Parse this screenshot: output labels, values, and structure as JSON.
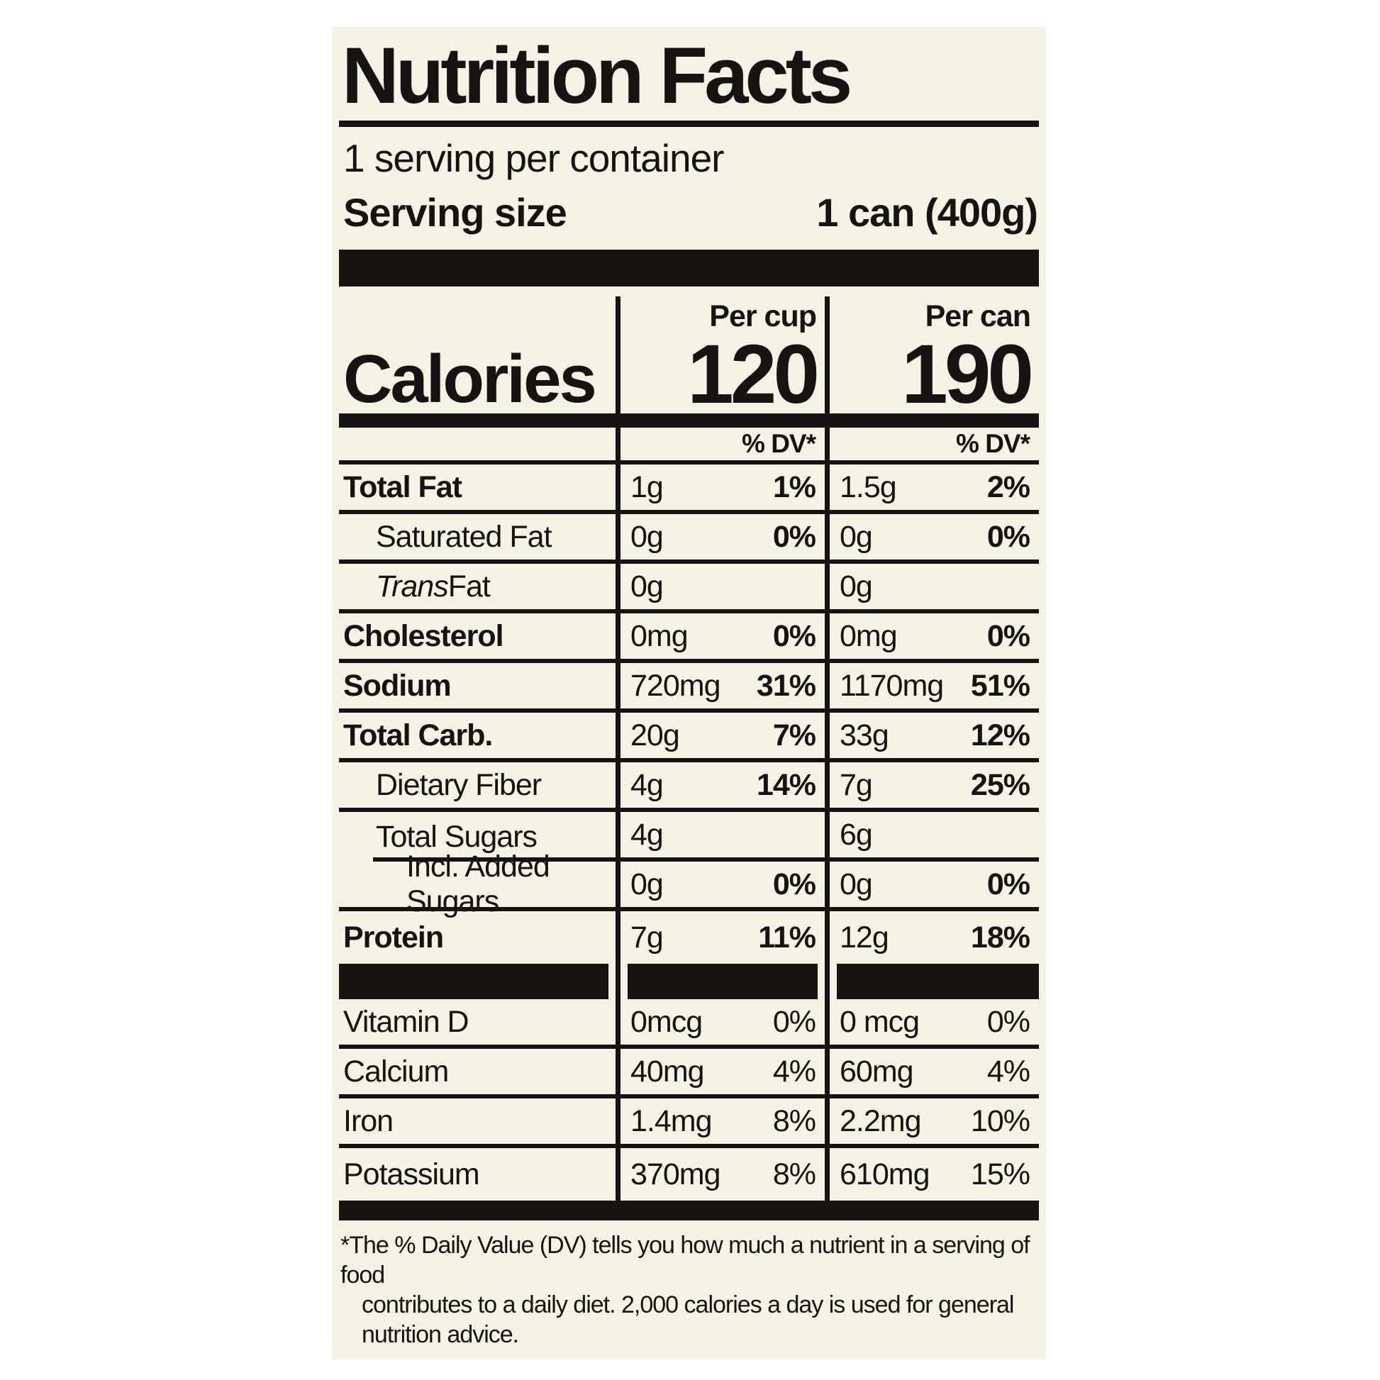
{
  "colors": {
    "bg": "#ffffff",
    "label_bg": "#f5f3e5",
    "ink": "#161413"
  },
  "nutrition": {
    "title": "Nutrition Facts",
    "servings_per_container": "1 serving per container",
    "serving_size_label": "Serving size",
    "serving_size_value": "1 can (400g)",
    "calories_label": "Calories",
    "columns": [
      {
        "header": "Per cup",
        "calories": "120",
        "dv_header": "% DV*"
      },
      {
        "header": "Per can",
        "calories": "190",
        "dv_header": "% DV*"
      }
    ],
    "rows": [
      {
        "name": "Total Fat",
        "cup": {
          "amount": "1g",
          "dv": "1%"
        },
        "can": {
          "amount": "1.5g",
          "dv": "2%"
        }
      },
      {
        "name": "Saturated Fat",
        "cup": {
          "amount": "0g",
          "dv": "0%"
        },
        "can": {
          "amount": "0g",
          "dv": "0%"
        }
      },
      {
        "name_italic": "Trans",
        "name": " Fat",
        "cup": {
          "amount": "0g",
          "dv": ""
        },
        "can": {
          "amount": "0g",
          "dv": ""
        }
      },
      {
        "name": "Cholesterol",
        "cup": {
          "amount": "0mg",
          "dv": "0%"
        },
        "can": {
          "amount": "0mg",
          "dv": "0%"
        }
      },
      {
        "name": "Sodium",
        "cup": {
          "amount": "720mg",
          "dv": "31%"
        },
        "can": {
          "amount": "1170mg",
          "dv": "51%"
        }
      },
      {
        "name": "Total Carb.",
        "cup": {
          "amount": "20g",
          "dv": "7%"
        },
        "can": {
          "amount": "33g",
          "dv": "12%"
        }
      },
      {
        "name": "Dietary Fiber",
        "cup": {
          "amount": "4g",
          "dv": "14%"
        },
        "can": {
          "amount": "7g",
          "dv": "25%"
        }
      },
      {
        "name": "Total Sugars",
        "cup": {
          "amount": "4g",
          "dv": ""
        },
        "can": {
          "amount": "6g",
          "dv": ""
        }
      },
      {
        "name": "Incl. Added Sugars",
        "cup": {
          "amount": "0g",
          "dv": "0%"
        },
        "can": {
          "amount": "0g",
          "dv": "0%"
        }
      },
      {
        "name": "Protein",
        "cup": {
          "amount": "7g",
          "dv": "11%"
        },
        "can": {
          "amount": "12g",
          "dv": "18%"
        }
      }
    ],
    "vitamins": [
      {
        "name": "Vitamin D",
        "cup": {
          "amount": "0mcg",
          "dv": "0%"
        },
        "can": {
          "amount": "0 mcg",
          "dv": "0%"
        }
      },
      {
        "name": "Calcium",
        "cup": {
          "amount": "40mg",
          "dv": "4%"
        },
        "can": {
          "amount": "60mg",
          "dv": "4%"
        }
      },
      {
        "name": "Iron",
        "cup": {
          "amount": "1.4mg",
          "dv": "8%"
        },
        "can": {
          "amount": "2.2mg",
          "dv": "10%"
        }
      },
      {
        "name": "Potassium",
        "cup": {
          "amount": "370mg",
          "dv": "8%"
        },
        "can": {
          "amount": "610mg",
          "dv": "15%"
        }
      }
    ],
    "footnote_line1": "*The % Daily Value (DV) tells you how much a nutrient in a serving of food",
    "footnote_line2": "contributes to a daily diet. 2,000 calories a day is used for general nutrition advice."
  }
}
